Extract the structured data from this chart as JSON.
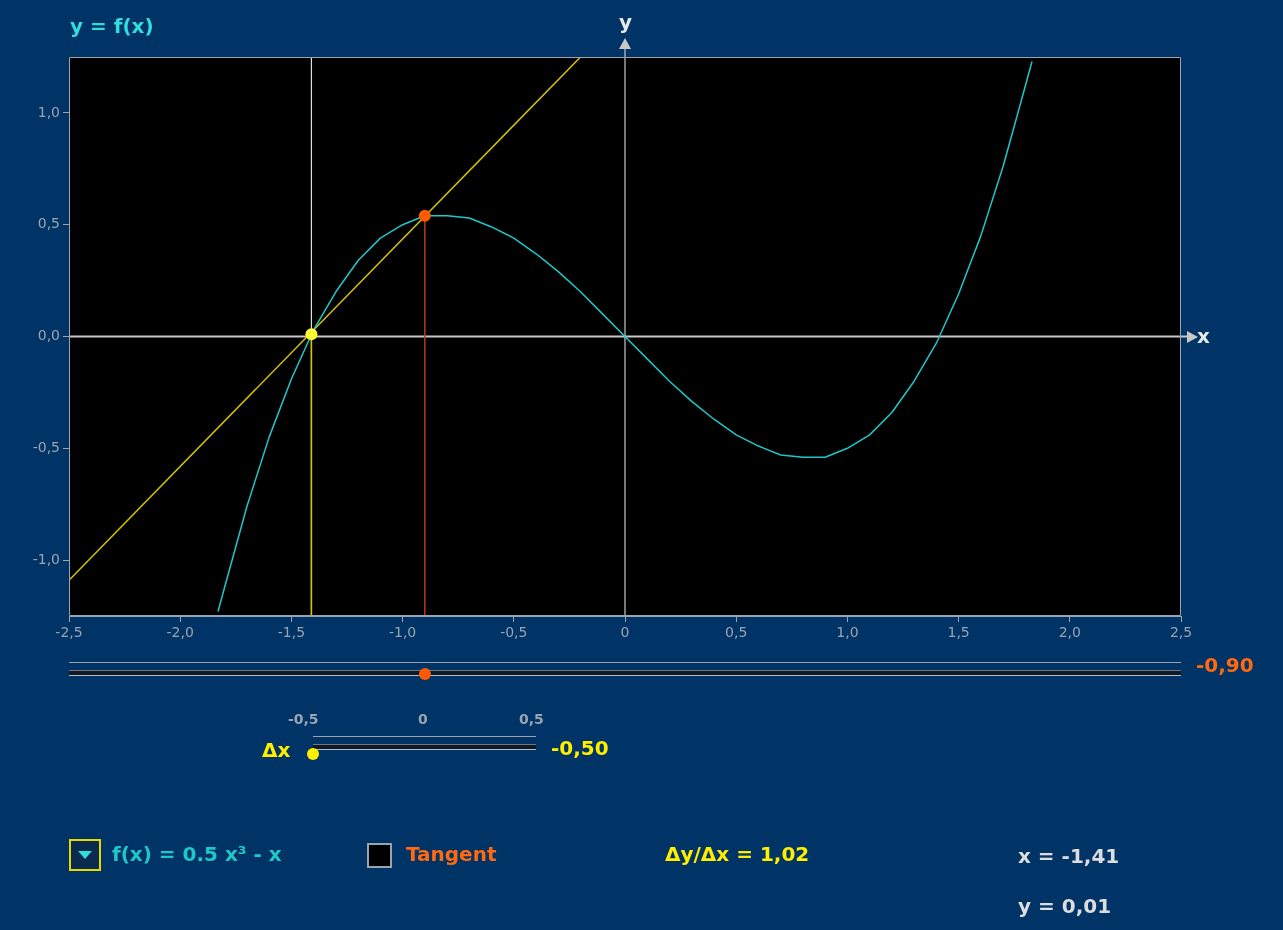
{
  "chart_data": {
    "type": "line",
    "title": "y = f(x)",
    "xlabel": "x",
    "ylabel": "y",
    "xlim": [
      -2.5,
      2.5
    ],
    "ylim": [
      -1.25,
      1.25
    ],
    "xticks": [
      {
        "value": -2.5,
        "label": "-2,5"
      },
      {
        "value": -2,
        "label": "-2,0"
      },
      {
        "value": -1.5,
        "label": "-1,5"
      },
      {
        "value": -1,
        "label": "-1,0"
      },
      {
        "value": -0.5,
        "label": "-0,5"
      },
      0,
      {
        "value": 0.5,
        "label": "0,5"
      },
      {
        "value": 1,
        "label": "1,0"
      },
      {
        "value": 1.5,
        "label": "1,5"
      },
      {
        "value": 2,
        "label": "2,0"
      },
      {
        "value": 2.5,
        "label": "2,5"
      }
    ],
    "yticks": [
      {
        "value": -1,
        "label": "-1,0"
      },
      {
        "value": -0.5,
        "label": "-0,5"
      },
      {
        "value": 0,
        "label": "0,0"
      },
      {
        "value": 0.5,
        "label": "0,5"
      },
      {
        "value": 1,
        "label": "1,0"
      }
    ],
    "grid": false,
    "line_style": "solid",
    "series": [
      {
        "name": "f(x) = 0.5 x³ - x",
        "color": "#1fc8c8",
        "x": [
          -1.83,
          -1.8,
          -1.7,
          -1.6,
          -1.5,
          -1.4,
          -1.3,
          -1.2,
          -1.1,
          -1.0,
          -0.9,
          -0.8,
          -0.7,
          -0.6,
          -0.5,
          -0.4,
          -0.3,
          -0.2,
          -0.1,
          0,
          0.1,
          0.2,
          0.3,
          0.4,
          0.5,
          0.6,
          0.7,
          0.8,
          0.9,
          1.0,
          1.1,
          1.2,
          1.3,
          1.4,
          1.5,
          1.6,
          1.7,
          1.8,
          1.83
        ],
        "values": [
          -1.23,
          -1.12,
          -0.76,
          -0.45,
          -0.19,
          0.03,
          0.2,
          0.34,
          0.44,
          0.5,
          0.54,
          0.54,
          0.53,
          0.49,
          0.44,
          0.37,
          0.29,
          0.2,
          0.1,
          0,
          -0.1,
          -0.2,
          -0.29,
          -0.37,
          -0.44,
          -0.49,
          -0.53,
          -0.54,
          -0.54,
          -0.5,
          -0.44,
          -0.34,
          -0.2,
          -0.03,
          0.19,
          0.45,
          0.76,
          1.12,
          1.23
        ]
      },
      {
        "color": "#d4c400",
        "x": [
          -2.5,
          -0.2
        ],
        "values": [
          -1.09,
          1.25
        ]
      },
      {
        "color": "#b04010",
        "x": [
          -0.9,
          -0.9
        ],
        "values": [
          -1.25,
          0.54
        ]
      },
      {
        "color": "#d4c400",
        "x": [
          -1.41,
          -1.41
        ],
        "values": [
          -1.25,
          0.01
        ]
      },
      {
        "type": "scatter",
        "marker": "circle",
        "color": "#ff5a00",
        "x": [
          -0.9
        ],
        "values": [
          0.54
        ]
      },
      {
        "type": "scatter",
        "marker": "circle",
        "color": "#ffff33",
        "x": [
          -1.41
        ],
        "values": [
          0.01
        ]
      }
    ],
    "ref_lines": [
      {
        "axis": "x",
        "value": -1.41,
        "color": "#e0e0e0"
      }
    ],
    "annotations": [
      "-0,90",
      "Δx",
      "-0,5",
      "0",
      "0,5",
      "-0,50",
      "Tangent",
      "Δy/Δx = 1,02",
      "x = -1,41",
      "y = 0,01"
    ]
  }
}
